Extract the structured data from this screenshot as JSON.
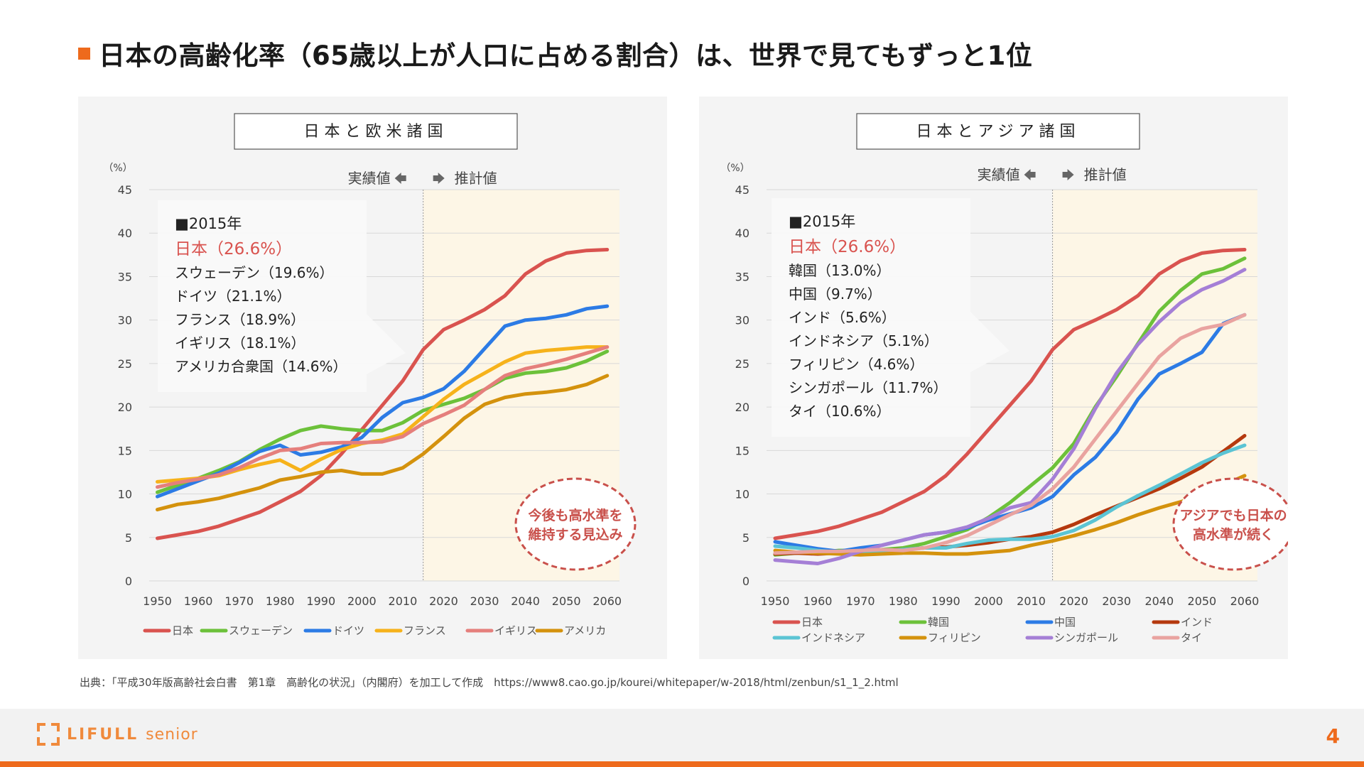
{
  "page": {
    "title": "日本の高齢化率（65歳以上が人口に占める割合）は、世界で見てもずっと1位",
    "accent_color": "#ee6a1c",
    "source": "出典：「平成30年版高齢社会白書　第1章　高齢化の状況」（内閣府）を加工して作成　https://www8.cao.go.jp/kourei/whitepaper/w-2018/html/zenbun/s1_1_2.html",
    "logo_main": "LIFULL",
    "logo_sub": "senior",
    "page_number": "4"
  },
  "chart_data": [
    {
      "type": "line",
      "title": "日本と欧米諸国",
      "unit_label": "（%）",
      "actual_label": "実績値",
      "forecast_label": "推計値",
      "forecast_start": 2015,
      "x_ticks": [
        1950,
        1960,
        1970,
        1980,
        1990,
        2000,
        2010,
        2020,
        2030,
        2040,
        2050,
        2060
      ],
      "y_ticks": [
        0,
        5,
        10,
        15,
        20,
        25,
        30,
        35,
        40,
        45
      ],
      "xlim": [
        1948,
        2063
      ],
      "ylim": [
        0,
        45
      ],
      "info_header": "■2015年",
      "info_lines": [
        {
          "text": "日本（26.6%）",
          "highlight": true
        },
        {
          "text": "スウェーデン（19.6%）",
          "highlight": false
        },
        {
          "text": "ドイツ（21.1%）",
          "highlight": false
        },
        {
          "text": "フランス（18.9%）",
          "highlight": false
        },
        {
          "text": "イギリス（18.1%）",
          "highlight": false
        },
        {
          "text": "アメリカ合衆国（14.6%）",
          "highlight": false
        }
      ],
      "bubble_text": [
        "今後も高水準を",
        "維持する見込み"
      ],
      "x": [
        1950,
        1955,
        1960,
        1965,
        1970,
        1975,
        1980,
        1985,
        1990,
        1995,
        2000,
        2005,
        2010,
        2015,
        2020,
        2025,
        2030,
        2035,
        2040,
        2045,
        2050,
        2055,
        2060
      ],
      "series": [
        {
          "name": "日本",
          "color": "#d9534f",
          "values": [
            4.9,
            5.3,
            5.7,
            6.3,
            7.1,
            7.9,
            9.1,
            10.3,
            12.1,
            14.6,
            17.4,
            20.2,
            23.0,
            26.6,
            28.9,
            30.0,
            31.2,
            32.8,
            35.3,
            36.8,
            37.7,
            38.0,
            38.1
          ]
        },
        {
          "name": "スウェーデン",
          "color": "#6cc13a",
          "values": [
            10.2,
            11.0,
            11.8,
            12.7,
            13.7,
            15.1,
            16.3,
            17.3,
            17.8,
            17.5,
            17.3,
            17.3,
            18.2,
            19.6,
            20.3,
            21.0,
            22.0,
            23.3,
            23.9,
            24.1,
            24.5,
            25.3,
            26.4
          ]
        },
        {
          "name": "ドイツ",
          "color": "#2c7be5",
          "values": [
            9.7,
            10.6,
            11.5,
            12.4,
            13.6,
            14.9,
            15.6,
            14.5,
            14.8,
            15.4,
            16.5,
            18.8,
            20.5,
            21.1,
            22.1,
            24.1,
            26.7,
            29.3,
            30.0,
            30.2,
            30.6,
            31.3,
            31.6
          ]
        },
        {
          "name": "フランス",
          "color": "#f6b21b",
          "values": [
            11.4,
            11.6,
            11.8,
            12.1,
            12.8,
            13.4,
            13.9,
            12.7,
            14.0,
            15.1,
            15.8,
            16.2,
            16.9,
            18.9,
            20.9,
            22.6,
            23.9,
            25.2,
            26.2,
            26.5,
            26.7,
            26.9,
            26.9
          ]
        },
        {
          "name": "イギリス",
          "color": "#e57f7c",
          "values": [
            10.8,
            11.3,
            11.7,
            12.2,
            13.0,
            14.1,
            15.0,
            15.2,
            15.8,
            15.9,
            15.9,
            16.0,
            16.6,
            18.1,
            19.1,
            20.2,
            22.0,
            23.6,
            24.4,
            24.9,
            25.5,
            26.2,
            26.9
          ]
        },
        {
          "name": "アメリカ",
          "color": "#d4920d",
          "values": [
            8.2,
            8.8,
            9.1,
            9.5,
            10.1,
            10.7,
            11.6,
            12.0,
            12.5,
            12.7,
            12.3,
            12.3,
            13.0,
            14.6,
            16.6,
            18.7,
            20.3,
            21.1,
            21.5,
            21.7,
            22.0,
            22.6,
            23.6
          ]
        }
      ]
    },
    {
      "type": "line",
      "title": "日本とアジア諸国",
      "unit_label": "（%）",
      "actual_label": "実績値",
      "forecast_label": "推計値",
      "forecast_start": 2015,
      "x_ticks": [
        1950,
        1960,
        1970,
        1980,
        1990,
        2000,
        2010,
        2020,
        2030,
        2040,
        2050,
        2060
      ],
      "y_ticks": [
        0,
        5,
        10,
        15,
        20,
        25,
        30,
        35,
        40,
        45
      ],
      "xlim": [
        1948,
        2063
      ],
      "ylim": [
        0,
        45
      ],
      "info_header": "■2015年",
      "info_lines": [
        {
          "text": "日本（26.6%）",
          "highlight": true
        },
        {
          "text": "韓国（13.0%）",
          "highlight": false
        },
        {
          "text": "中国（9.7%）",
          "highlight": false
        },
        {
          "text": "インド（5.6%）",
          "highlight": false
        },
        {
          "text": "インドネシア（5.1%）",
          "highlight": false
        },
        {
          "text": "フィリピン（4.6%）",
          "highlight": false
        },
        {
          "text": "シンガポール（11.7%）",
          "highlight": false
        },
        {
          "text": "タイ（10.6%）",
          "highlight": false
        }
      ],
      "bubble_text": [
        "アジアでも日本の",
        "高水準が続く"
      ],
      "x": [
        1950,
        1955,
        1960,
        1965,
        1970,
        1975,
        1980,
        1985,
        1990,
        1995,
        2000,
        2005,
        2010,
        2015,
        2020,
        2025,
        2030,
        2035,
        2040,
        2045,
        2050,
        2055,
        2060
      ],
      "series": [
        {
          "name": "日本",
          "color": "#d9534f",
          "values": [
            4.9,
            5.3,
            5.7,
            6.3,
            7.1,
            7.9,
            9.1,
            10.3,
            12.1,
            14.6,
            17.4,
            20.2,
            23.0,
            26.6,
            28.9,
            30.0,
            31.2,
            32.8,
            35.3,
            36.8,
            37.7,
            38.0,
            38.1
          ]
        },
        {
          "name": "韓国",
          "color": "#6cc13a",
          "values": [
            3.0,
            3.2,
            3.3,
            3.5,
            3.5,
            3.6,
            3.8,
            4.3,
            5.1,
            5.9,
            7.3,
            9.0,
            11.0,
            13.0,
            15.8,
            20.0,
            23.5,
            27.3,
            31.0,
            33.4,
            35.3,
            35.9,
            37.1
          ]
        },
        {
          "name": "中国",
          "color": "#2c7be5",
          "values": [
            4.5,
            4.1,
            3.7,
            3.4,
            3.8,
            4.1,
            4.7,
            5.3,
            5.6,
            6.1,
            7.0,
            7.7,
            8.4,
            9.7,
            12.2,
            14.2,
            17.1,
            20.9,
            23.8,
            25.0,
            26.3,
            29.6,
            30.6
          ]
        },
        {
          "name": "インド",
          "color": "#b5390e",
          "values": [
            3.1,
            3.2,
            3.1,
            3.2,
            3.3,
            3.5,
            3.6,
            3.8,
            3.9,
            4.1,
            4.4,
            4.8,
            5.1,
            5.6,
            6.5,
            7.6,
            8.6,
            9.6,
            10.6,
            11.8,
            13.1,
            14.9,
            16.7
          ]
        },
        {
          "name": "インドネシア",
          "color": "#5bc4d4",
          "values": [
            4.0,
            3.8,
            3.5,
            3.3,
            3.3,
            3.4,
            3.6,
            3.8,
            3.8,
            4.3,
            4.7,
            4.8,
            4.8,
            5.1,
            5.8,
            7.0,
            8.5,
            9.8,
            11.0,
            12.3,
            13.6,
            14.7,
            15.6
          ]
        },
        {
          "name": "フィリピン",
          "color": "#d4920d",
          "values": [
            3.5,
            3.3,
            3.2,
            3.1,
            3.0,
            3.1,
            3.2,
            3.2,
            3.1,
            3.1,
            3.3,
            3.5,
            4.1,
            4.6,
            5.2,
            5.9,
            6.7,
            7.6,
            8.4,
            9.1,
            9.8,
            11.0,
            12.1
          ]
        },
        {
          "name": "シンガポール",
          "color": "#a57fd6",
          "values": [
            2.4,
            2.2,
            2.0,
            2.6,
            3.4,
            4.1,
            4.7,
            5.3,
            5.6,
            6.2,
            7.2,
            8.4,
            9.0,
            11.7,
            15.2,
            19.8,
            23.9,
            27.2,
            29.8,
            32.0,
            33.5,
            34.5,
            35.8
          ]
        },
        {
          "name": "タイ",
          "color": "#e9a3a0",
          "values": [
            3.2,
            3.3,
            3.4,
            3.4,
            3.5,
            3.6,
            3.5,
            3.8,
            4.4,
            5.2,
            6.4,
            7.6,
            8.7,
            10.6,
            13.1,
            16.3,
            19.5,
            22.7,
            25.8,
            27.9,
            29.0,
            29.5,
            30.6
          ]
        }
      ]
    }
  ]
}
